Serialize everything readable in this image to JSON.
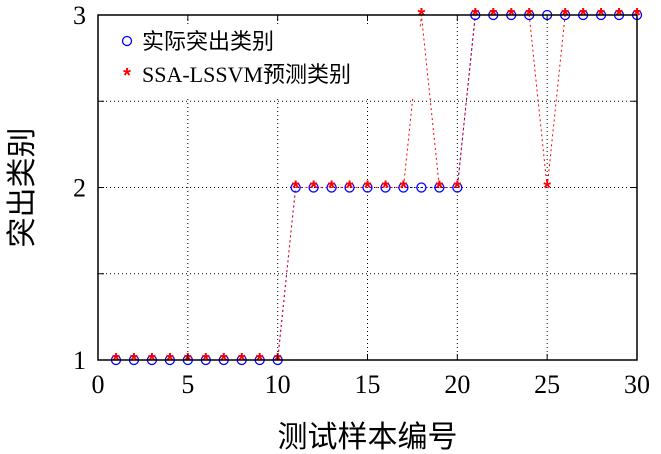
{
  "chart_data": {
    "type": "scatter",
    "xlabel": "测试样本编号",
    "ylabel": "突出类别",
    "xlim": [
      0,
      30
    ],
    "ylim": [
      1,
      3
    ],
    "x_ticks": [
      "0",
      "5",
      "10",
      "15",
      "20",
      "25",
      "30"
    ],
    "y_ticks": [
      "1",
      "2",
      "3"
    ],
    "grid": true,
    "legend_position": "top-left",
    "x": [
      1,
      2,
      3,
      4,
      5,
      6,
      7,
      8,
      9,
      10,
      11,
      12,
      13,
      14,
      15,
      16,
      17,
      18,
      19,
      20,
      21,
      22,
      23,
      24,
      25,
      26,
      27,
      28,
      29,
      30
    ],
    "series": [
      {
        "name": "实际突出类别",
        "marker": "circle",
        "color": "#0000ff",
        "values": [
          1,
          1,
          1,
          1,
          1,
          1,
          1,
          1,
          1,
          1,
          2,
          2,
          2,
          2,
          2,
          2,
          2,
          2,
          2,
          2,
          3,
          3,
          3,
          3,
          3,
          3,
          3,
          3,
          3,
          3
        ]
      },
      {
        "name": "SSA-LSSVM预测类别",
        "marker": "asterisk",
        "color": "#ff0000",
        "values": [
          1,
          1,
          1,
          1,
          1,
          1,
          1,
          1,
          1,
          1,
          2,
          2,
          2,
          2,
          2,
          2,
          2,
          3,
          2,
          2,
          3,
          3,
          3,
          3,
          2,
          3,
          3,
          3,
          3,
          3
        ]
      }
    ]
  }
}
